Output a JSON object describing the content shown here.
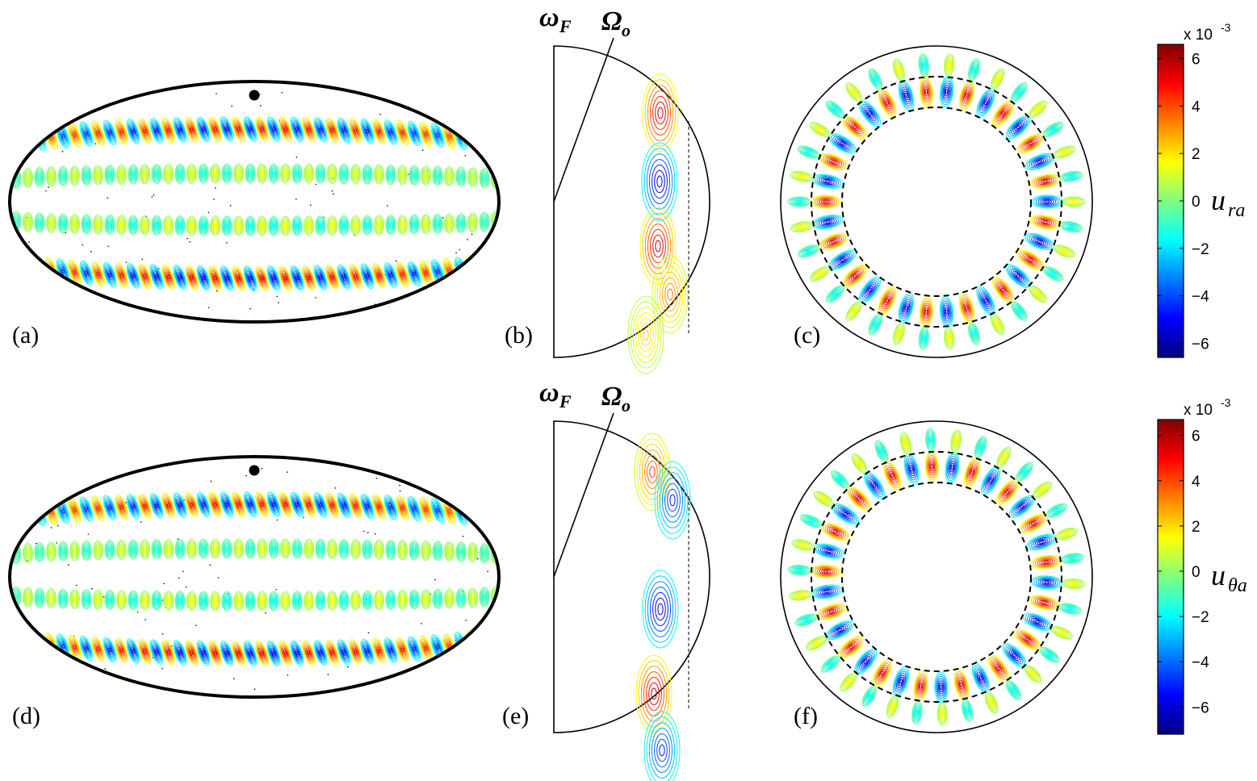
{
  "panels": [
    {
      "label": "(a)"
    },
    {
      "label": "(b)"
    },
    {
      "label": "(c)"
    },
    {
      "label": "(d)"
    },
    {
      "label": "(e)"
    },
    {
      "label": "(f)"
    }
  ],
  "rows": [
    {
      "omega_label": "ω",
      "omega_sub": "F",
      "Omega_label": "Ω",
      "Omega_sub": "o",
      "colorbar": {
        "scale_text": "x 10",
        "scale_exponent": "-3",
        "quantity": "u",
        "quantity_sub": "ra",
        "ylim": [
          -6.6,
          6.6
        ],
        "yticks": [
          {
            "value": -6,
            "label": "−6"
          },
          {
            "value": -4,
            "label": "−4"
          },
          {
            "value": -2,
            "label": "−2"
          },
          0,
          2,
          4,
          6
        ]
      }
    },
    {
      "omega_label": "ω",
      "omega_sub": "F",
      "Omega_label": "Ω",
      "Omega_sub": "o",
      "colorbar": {
        "scale_text": "x 10",
        "scale_exponent": "-3",
        "quantity": "u",
        "quantity_sub": "θa",
        "ylim": [
          -7.2,
          6.7
        ],
        "yticks": [
          {
            "value": -6,
            "label": "−6"
          },
          {
            "value": -4,
            "label": "−4"
          },
          {
            "value": -2,
            "label": "−2"
          },
          0,
          2,
          4,
          6
        ]
      }
    }
  ]
}
